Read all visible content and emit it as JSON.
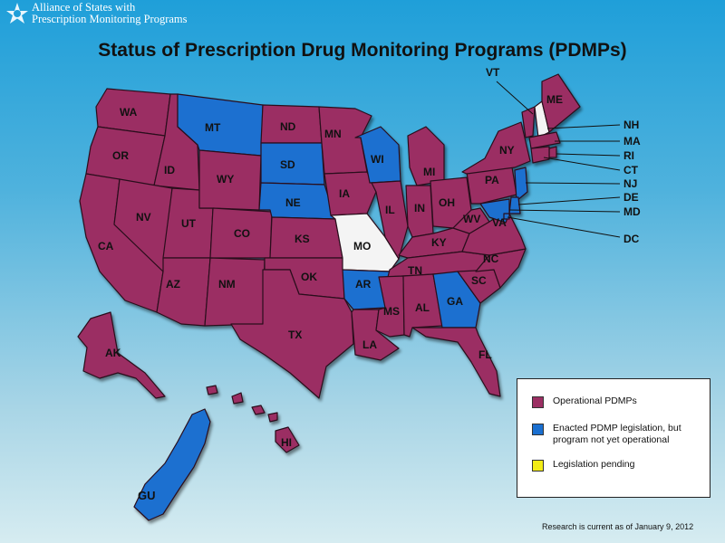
{
  "header": {
    "org_line1": "Alliance of States with",
    "org_line2": "Prescription Monitoring Programs"
  },
  "title": "Status of Prescription Drug Monitoring Programs (PDMPs)",
  "colors": {
    "operational": "#9b2f63",
    "enacted": "#1a6fd0",
    "pending": "#f2ec16",
    "none": "#f4f4f4"
  },
  "states": {
    "WA": "operational",
    "OR": "operational",
    "CA": "operational",
    "ID": "operational",
    "NV": "operational",
    "UT": "operational",
    "AZ": "operational",
    "MT": "enacted",
    "WY": "operational",
    "CO": "operational",
    "NM": "operational",
    "ND": "operational",
    "SD": "enacted",
    "NE": "enacted",
    "KS": "operational",
    "OK": "operational",
    "TX": "operational",
    "MN": "operational",
    "IA": "operational",
    "MO": "none",
    "AR": "enacted",
    "LA": "operational",
    "WI": "enacted",
    "IL": "operational",
    "MI": "operational",
    "IN": "operational",
    "OH": "operational",
    "KY": "operational",
    "TN": "operational",
    "MS": "operational",
    "AL": "operational",
    "GA": "enacted",
    "FL": "operational",
    "SC": "operational",
    "NC": "operational",
    "VA": "operational",
    "WV": "operational",
    "PA": "operational",
    "NY": "operational",
    "VT": "operational",
    "NH": "none",
    "ME": "operational",
    "MA": "operational",
    "RI": "operational",
    "CT": "operational",
    "NJ": "enacted",
    "DE": "enacted",
    "MD": "enacted",
    "DC": "enacted",
    "AK": "operational",
    "HI": "operational",
    "GU": "enacted"
  },
  "legend": [
    {
      "status": "operational",
      "text": "Operational PDMPs"
    },
    {
      "status": "enacted",
      "text": "Enacted PDMP legislation, but program not yet operational"
    },
    {
      "status": "pending",
      "text": "Legislation pending"
    }
  ],
  "note": "Research is current as of January 9, 2012"
}
